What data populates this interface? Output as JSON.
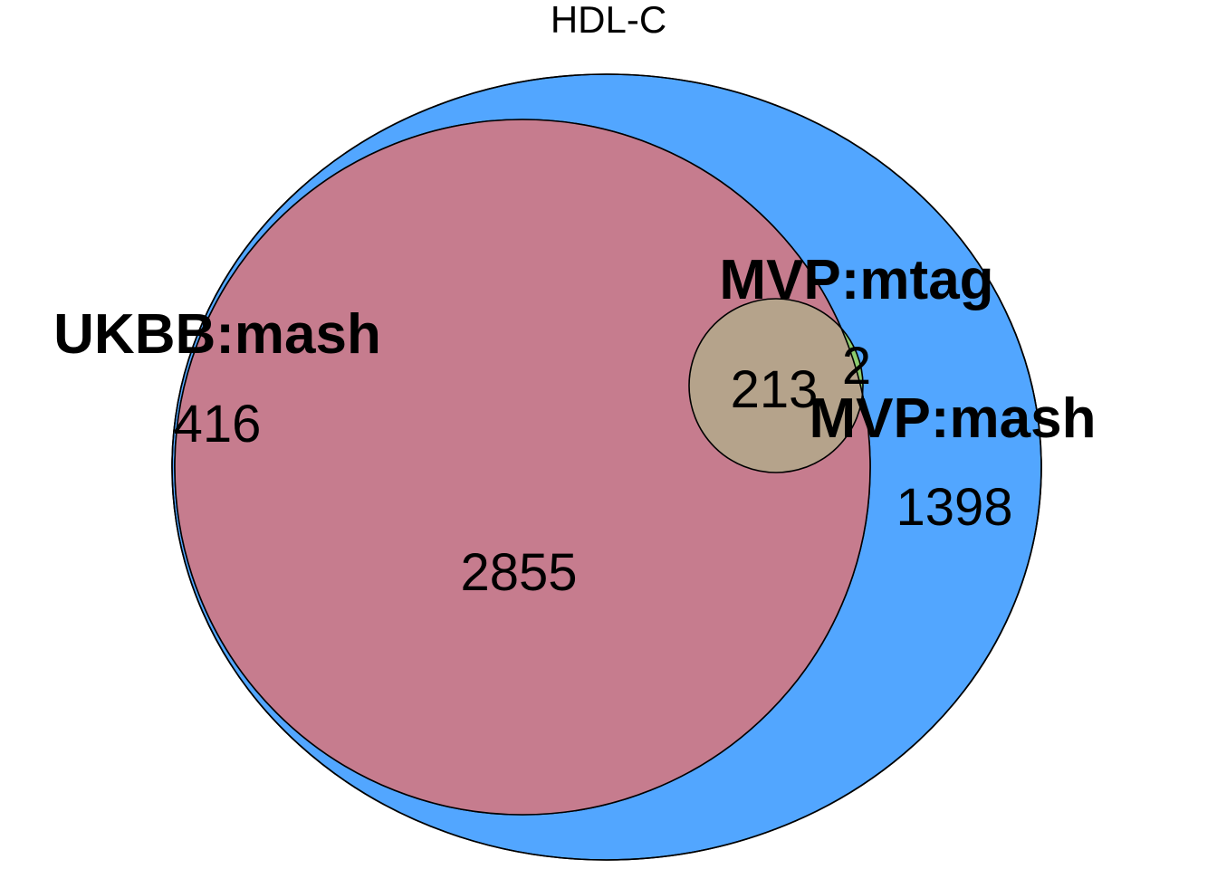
{
  "title": "HDL-C",
  "colors": {
    "ukbb_mash": "#FF4F3C",
    "mvp_mash": "#52A6FF",
    "overlap_ukbb_mvp_mash": "#C67C8E",
    "mvp_mtag_core": "#B5A38B",
    "mvp_mtag_only_mash": "#8CCB6E",
    "outline": "#000000"
  },
  "sets": [
    {
      "name": "UKBB:mash"
    },
    {
      "name": "MVP:mash"
    },
    {
      "name": "MVP:mtag"
    }
  ],
  "regions": [
    {
      "sets": [
        "UKBB:mash"
      ],
      "count": "416"
    },
    {
      "sets": [
        "UKBB:mash",
        "MVP:mash"
      ],
      "count": "2855"
    },
    {
      "sets": [
        "MVP:mash"
      ],
      "count": "1398"
    },
    {
      "sets": [
        "UKBB:mash",
        "MVP:mash",
        "MVP:mtag"
      ],
      "count": "213"
    },
    {
      "sets": [
        "MVP:mash",
        "MVP:mtag"
      ],
      "count": "2"
    }
  ]
}
